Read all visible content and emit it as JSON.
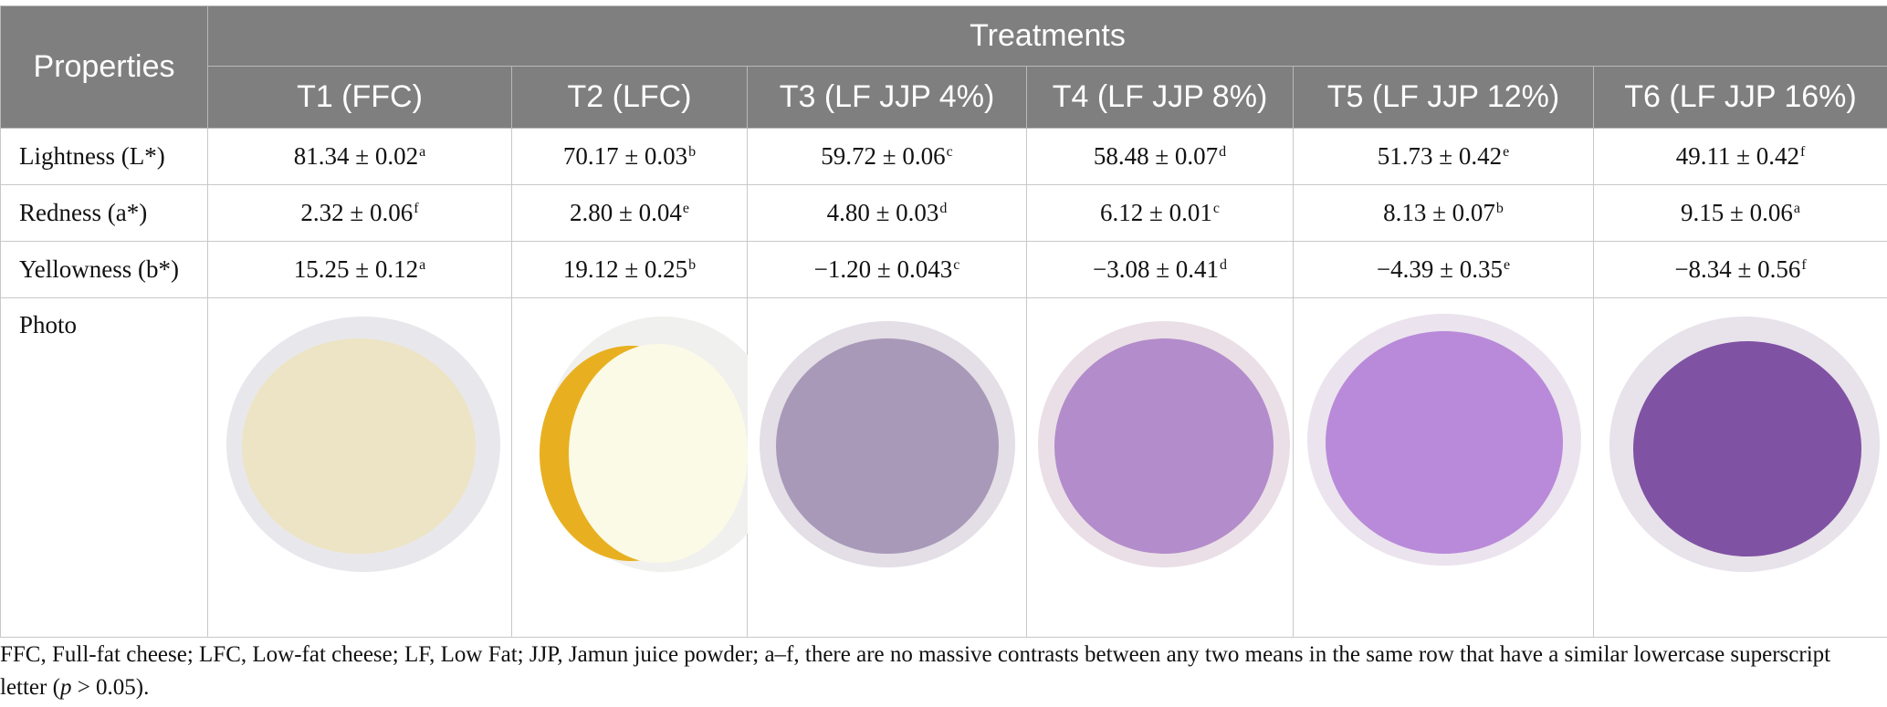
{
  "table": {
    "header": {
      "properties": "Properties",
      "treatments": "Treatments",
      "columns": [
        "T1 (FFC)",
        "T2 (LFC)",
        "T3 (LF JJP 4%)",
        "T4 (LF JJP 8%)",
        "T5 (LF JJP 12%)",
        "T6 (LF JJP 16%)"
      ]
    },
    "rows": [
      {
        "label": "Lightness (L*)",
        "cells": [
          {
            "value": "81.34 ± 0.02",
            "sup": "a"
          },
          {
            "value": "70.17 ± 0.03",
            "sup": "b"
          },
          {
            "value": "59.72 ± 0.06",
            "sup": "c"
          },
          {
            "value": "58.48 ± 0.07",
            "sup": "d"
          },
          {
            "value": "51.73 ± 0.42",
            "sup": "e"
          },
          {
            "value": "49.11 ± 0.42",
            "sup": "f"
          }
        ]
      },
      {
        "label": "Redness (a*)",
        "cells": [
          {
            "value": "2.32 ± 0.06",
            "sup": "f"
          },
          {
            "value": "2.80 ± 0.04",
            "sup": "e"
          },
          {
            "value": "4.80 ± 0.03",
            "sup": "d"
          },
          {
            "value": "6.12 ± 0.01",
            "sup": "c"
          },
          {
            "value": "8.13 ± 0.07",
            "sup": "b"
          },
          {
            "value": "9.15 ± 0.06",
            "sup": "a"
          }
        ]
      },
      {
        "label": "Yellowness (b*)",
        "cells": [
          {
            "value": "15.25 ± 0.12",
            "sup": "a"
          },
          {
            "value": "19.12 ± 0.25",
            "sup": "b"
          },
          {
            "value": "−1.20 ± 0.043",
            "sup": "c"
          },
          {
            "value": "−3.08 ± 0.41",
            "sup": "d"
          },
          {
            "value": "−4.39 ± 0.35",
            "sup": "e"
          },
          {
            "value": "−8.34 ± 0.56",
            "sup": "f"
          }
        ]
      }
    ],
    "photo_label": "Photo"
  },
  "footnote": {
    "before": "FFC, Full-fat cheese; LFC, Low-fat cheese; LF, Low Fat; JJP, Jamun juice powder; a–f, there are no massive contrasts between any two means in the same row that have a similar lowercase superscript letter (",
    "italic": "p",
    "after": " > 0.05)."
  }
}
